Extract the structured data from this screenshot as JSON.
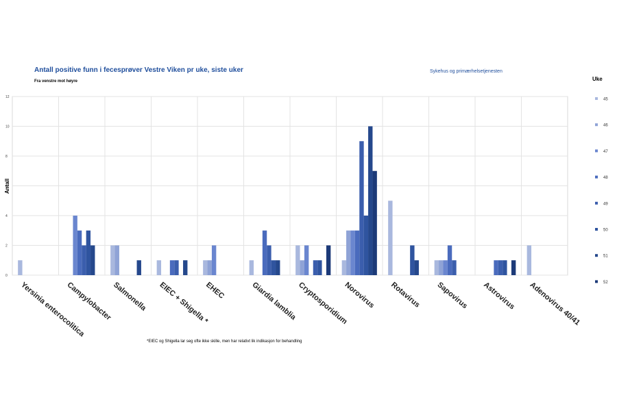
{
  "header": {
    "title": "Antall positive funn i fecesprøver Vestre Viken pr uke, siste uker",
    "subtitle": "Fra venstre mot høyre",
    "region": "Sykehus og primærhelsetjenesten"
  },
  "footnote": "*EIEC og Shigella lar seg ofte ikke skille, men har relativt lik indikasjon for behandling",
  "chart_data": {
    "type": "bar",
    "title": "Antall positive funn i fecesprøver Vestre Viken pr uke, siste uker",
    "ylabel": "Antall",
    "xlabel": "",
    "ylim": [
      0,
      12
    ],
    "yticks": [
      "0",
      "2",
      "4",
      "6",
      "8",
      "10",
      "12"
    ],
    "grid": true,
    "legend_title": "Uke",
    "legend_position": "right",
    "categories": [
      "Yersinia enterocolitica",
      "Campylobacter",
      "Salmonella",
      "EIEC + Shigella *",
      "EHEC",
      "Giardia lamblia",
      "Cryptosporidium",
      "Norovirus",
      "Rotavirus",
      "Sapovirus",
      "Astrovirus",
      "Adenovirus 40/41"
    ],
    "series": [
      {
        "name": "45",
        "color": "#a9b8de",
        "values": [
          1,
          0,
          2,
          1,
          1,
          1,
          2,
          1,
          5,
          1,
          0,
          2
        ]
      },
      {
        "name": "46",
        "color": "#8fa3d6",
        "values": [
          0,
          0,
          2,
          0,
          1,
          0,
          1,
          3,
          0,
          1,
          0,
          0
        ]
      },
      {
        "name": "47",
        "color": "#6a86cf",
        "values": [
          0,
          4,
          0,
          0,
          2,
          0,
          2,
          3,
          0,
          1,
          0,
          0
        ]
      },
      {
        "name": "48",
        "color": "#4a6bbd",
        "values": [
          0,
          3,
          0,
          1,
          0,
          3,
          0,
          3,
          0,
          2,
          1,
          0
        ]
      },
      {
        "name": "49",
        "color": "#3b5ead",
        "values": [
          0,
          2,
          0,
          1,
          0,
          2,
          1,
          9,
          0,
          1,
          1,
          0
        ]
      },
      {
        "name": "50",
        "color": "#2f549f",
        "values": [
          0,
          3,
          0,
          0,
          0,
          1,
          1,
          4,
          2,
          0,
          1,
          0
        ]
      },
      {
        "name": "51",
        "color": "#25488c",
        "values": [
          0,
          2,
          1,
          1,
          0,
          1,
          0,
          10,
          1,
          0,
          0,
          0
        ]
      },
      {
        "name": "52",
        "color": "#1c3a78",
        "values": [
          0,
          0,
          0,
          0,
          0,
          0,
          2,
          7,
          0,
          0,
          1,
          0
        ]
      }
    ]
  }
}
